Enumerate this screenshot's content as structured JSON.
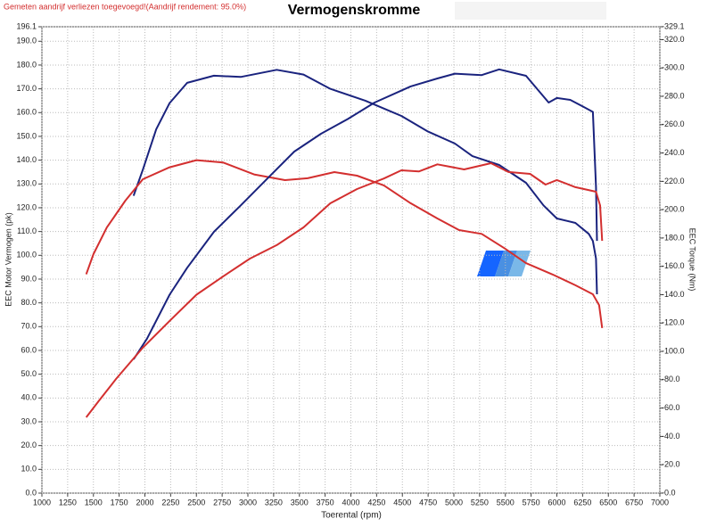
{
  "chart_data": {
    "type": "line",
    "title": "Vermogenskromme",
    "subtitle": "Gemeten aandrijf verliezen toegevoegd!(Aandrijf rendement: 95.0%)",
    "x_label": "Toerental (rpm)",
    "y_label": "EEC Motor Vermogen (pk)",
    "y2_label": "EEC Torque (Nm)",
    "xlim": [
      1000,
      7000
    ],
    "ylim": [
      0,
      196.1
    ],
    "y2lim": [
      0,
      329.1
    ],
    "grid": true,
    "xticks": [
      1000,
      1250,
      1500,
      1750,
      2000,
      2250,
      2500,
      2750,
      3000,
      3250,
      3500,
      3750,
      4000,
      4250,
      4500,
      4750,
      5000,
      5250,
      5500,
      5750,
      6000,
      6250,
      6500,
      6750,
      7000
    ],
    "yticks": [
      {
        "value": 0,
        "label": "0.0"
      },
      {
        "value": 10,
        "label": "10.0"
      },
      {
        "value": 20,
        "label": "20.0"
      },
      {
        "value": 30,
        "label": "30.0"
      },
      {
        "value": 40,
        "label": "40.0"
      },
      {
        "value": 50,
        "label": "50.0"
      },
      {
        "value": 60,
        "label": "60.0"
      },
      {
        "value": 70,
        "label": "70.0"
      },
      {
        "value": 80,
        "label": "80.0"
      },
      {
        "value": 90,
        "label": "90.0"
      },
      {
        "value": 100,
        "label": "100.0"
      },
      {
        "value": 110,
        "label": "110.0"
      },
      {
        "value": 120,
        "label": "120.0"
      },
      {
        "value": 130,
        "label": "130.0"
      },
      {
        "value": 140,
        "label": "140.0"
      },
      {
        "value": 150,
        "label": "150.0"
      },
      {
        "value": 160,
        "label": "160.0"
      },
      {
        "value": 170,
        "label": "170.0"
      },
      {
        "value": 180,
        "label": "180.0"
      },
      {
        "value": 190,
        "label": "190.0"
      },
      196.1
    ],
    "y2ticks": [
      {
        "value": 0,
        "label": "-0.0"
      },
      {
        "value": 20,
        "label": "-20.0"
      },
      {
        "value": 40,
        "label": "-40.0"
      },
      {
        "value": 60,
        "label": "-60.0"
      },
      {
        "value": 80,
        "label": "-80.0"
      },
      {
        "value": 100,
        "label": "-100.0"
      },
      {
        "value": 120,
        "label": "-120.0"
      },
      {
        "value": 140,
        "label": "-140.0"
      },
      {
        "value": 160,
        "label": "-160.0"
      },
      {
        "value": 180,
        "label": "-180.0"
      },
      {
        "value": 200,
        "label": "-200.0"
      },
      {
        "value": 220,
        "label": "-220.0"
      },
      {
        "value": 240,
        "label": "-240.0"
      },
      {
        "value": 260,
        "label": "-260.0"
      },
      {
        "value": 280,
        "label": "-280.0"
      },
      {
        "value": 300,
        "label": "-300.0"
      },
      {
        "value": 320,
        "label": "-320.0"
      },
      {
        "value": 329.1,
        "label": "-329.1"
      }
    ],
    "series": [
      {
        "color": "#1a237e",
        "axis": "y",
        "x": [
          1890,
          1980,
          2110,
          2240,
          2410,
          2670,
          2930,
          3280,
          3540,
          3800,
          4140,
          4490,
          4750,
          5010,
          5180,
          5440,
          5700,
          5870,
          6000,
          6180,
          6310,
          6350,
          6380,
          6390
        ],
        "values": [
          125,
          136,
          153,
          164,
          172.5,
          175.5,
          175,
          178,
          176,
          170,
          165,
          158.6,
          152,
          147,
          141.7,
          138,
          130.5,
          121,
          115.5,
          113.6,
          109,
          106,
          98.6,
          83.6
        ]
      },
      {
        "color": "#d32f2f",
        "axis": "y",
        "x": [
          1430,
          1500,
          1630,
          1810,
          1980,
          2240,
          2500,
          2760,
          3060,
          3360,
          3580,
          3840,
          4060,
          4320,
          4580,
          4840,
          5050,
          5270,
          5490,
          5700,
          5960,
          6180,
          6350,
          6410,
          6440
        ],
        "values": [
          92,
          100.5,
          111.7,
          123,
          132,
          137,
          140,
          139,
          134,
          131.6,
          132.4,
          135,
          133.5,
          129.4,
          121.9,
          115.5,
          110.6,
          109,
          103,
          96.7,
          91.9,
          87.4,
          83.6,
          79,
          69.4
        ]
      },
      {
        "color": "#1a237e",
        "axis": "y2",
        "x": [
          1890,
          2020,
          2240,
          2410,
          2670,
          2930,
          3190,
          3450,
          3710,
          3970,
          4230,
          4580,
          4840,
          5010,
          5270,
          5440,
          5700,
          5920,
          6000,
          6130,
          6260,
          6350,
          6380,
          6390
        ],
        "values": [
          94.4,
          108.9,
          140,
          159,
          184.4,
          203,
          222,
          241,
          253.6,
          264,
          275.6,
          287,
          292.6,
          296,
          295,
          299,
          294.5,
          275.6,
          278.8,
          277.5,
          272.5,
          269,
          216,
          178
        ]
      },
      {
        "color": "#d32f2f",
        "axis": "y2",
        "x": [
          1430,
          1550,
          1720,
          1980,
          2240,
          2500,
          2760,
          3020,
          3280,
          3540,
          3800,
          4060,
          4320,
          4490,
          4660,
          4840,
          5100,
          5360,
          5530,
          5740,
          5890,
          6000,
          6180,
          6380,
          6420,
          6440
        ],
        "values": [
          53.5,
          64.8,
          80.6,
          102.6,
          121.5,
          140,
          153,
          165.5,
          175,
          187.5,
          204.5,
          214.6,
          222,
          227.8,
          227,
          232,
          228.4,
          232.8,
          226.6,
          225.3,
          217.7,
          220.9,
          215.9,
          212.7,
          203,
          178
        ]
      }
    ]
  }
}
